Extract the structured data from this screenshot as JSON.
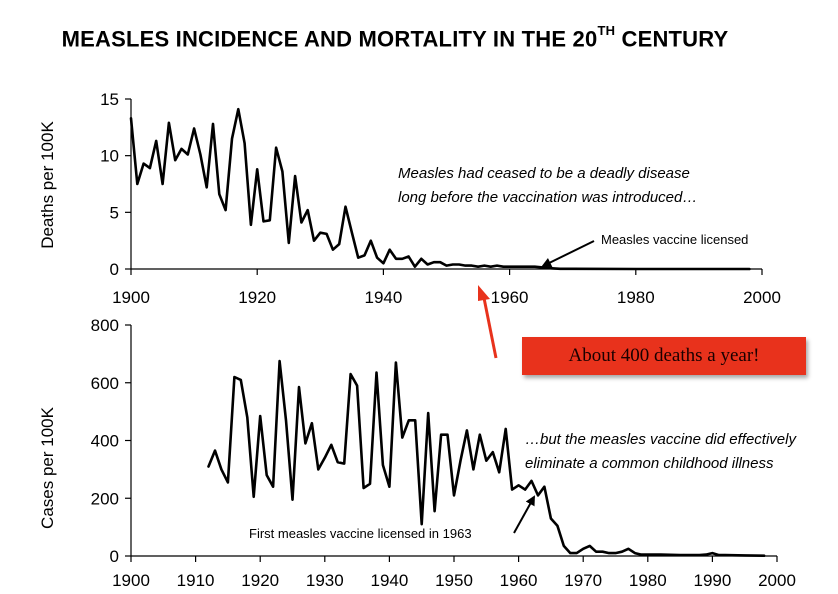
{
  "title": {
    "main": "MEASLES INCIDENCE AND MORTALITY IN THE 20",
    "sup": "TH",
    "end": " CENTURY"
  },
  "callout": {
    "text": "About 400 deaths a year!",
    "color": "#e8321c"
  },
  "chart_data": [
    {
      "type": "line",
      "xlabel": "",
      "ylabel": "Deaths per 100K",
      "xlim": [
        1900,
        2000
      ],
      "ylim": [
        0,
        15
      ],
      "xticks": [
        1900,
        1920,
        1940,
        1960,
        1980,
        2000
      ],
      "yticks": [
        0,
        5,
        10,
        15
      ],
      "grid": false,
      "annotations": [
        "Measles had ceased to be a deadly disease",
        "long before the vaccination was introduced…",
        "Measles vaccine licensed"
      ],
      "series": [
        {
          "x": [
            1900,
            1901,
            1902,
            1903,
            1904,
            1905,
            1906,
            1907,
            1908,
            1909,
            1910,
            1911,
            1912,
            1913,
            1914,
            1915,
            1916,
            1917,
            1918,
            1919,
            1920,
            1921,
            1922,
            1923,
            1924,
            1925,
            1926,
            1927,
            1928,
            1929,
            1930,
            1931,
            1932,
            1933,
            1934,
            1935,
            1936,
            1937,
            1938,
            1939,
            1940,
            1941,
            1942,
            1943,
            1944,
            1945,
            1946,
            1947,
            1948,
            1949,
            1950,
            1951,
            1952,
            1953,
            1954,
            1955,
            1956,
            1957,
            1958,
            1959,
            1960,
            1961,
            1962,
            1963,
            1964,
            1965,
            1966,
            1967,
            1968,
            1970,
            1980,
            1990,
            1998
          ],
          "values": [
            13.3,
            7.5,
            9.3,
            8.9,
            11.3,
            7.5,
            12.9,
            9.6,
            10.6,
            10.1,
            12.4,
            10.1,
            7.2,
            12.8,
            6.6,
            5.2,
            11.5,
            14.1,
            11.1,
            3.9,
            8.8,
            4.2,
            4.3,
            10.7,
            8.6,
            2.3,
            8.2,
            4.1,
            5.2,
            2.5,
            3.2,
            3.1,
            1.7,
            2.2,
            5.5,
            3.2,
            1.0,
            1.2,
            2.5,
            1.0,
            0.5,
            1.7,
            0.9,
            0.9,
            1.1,
            0.2,
            0.9,
            0.4,
            0.6,
            0.6,
            0.3,
            0.4,
            0.4,
            0.3,
            0.3,
            0.2,
            0.3,
            0.2,
            0.3,
            0.2,
            0.2,
            0.2,
            0.2,
            0.2,
            0.2,
            0.15,
            0.1,
            0.05,
            0.02,
            0.02,
            0.0,
            0.0,
            0.0
          ],
          "color": "#000000"
        }
      ]
    },
    {
      "type": "line",
      "xlabel": "",
      "ylabel": "Cases  per 100K",
      "xlim": [
        1900,
        2000
      ],
      "ylim": [
        0,
        800
      ],
      "xticks": [
        1900,
        1910,
        1920,
        1930,
        1940,
        1950,
        1960,
        1970,
        1980,
        1990,
        2000
      ],
      "yticks": [
        0,
        200,
        400,
        600,
        800
      ],
      "grid": false,
      "annotations": [
        "…but the measles vaccine did effectively",
        "eliminate a common childhood illness",
        "First measles vaccine  licensed in 1963"
      ],
      "series": [
        {
          "x": [
            1912,
            1913,
            1914,
            1915,
            1916,
            1917,
            1918,
            1919,
            1920,
            1921,
            1922,
            1923,
            1924,
            1925,
            1926,
            1927,
            1928,
            1929,
            1930,
            1931,
            1932,
            1933,
            1934,
            1935,
            1936,
            1937,
            1938,
            1939,
            1940,
            1941,
            1942,
            1943,
            1944,
            1945,
            1946,
            1947,
            1948,
            1949,
            1950,
            1951,
            1952,
            1953,
            1954,
            1955,
            1956,
            1957,
            1958,
            1959,
            1960,
            1961,
            1962,
            1963,
            1964,
            1965,
            1966,
            1967,
            1968,
            1969,
            1970,
            1971,
            1972,
            1973,
            1974,
            1975,
            1976,
            1977,
            1978,
            1979,
            1980,
            1982,
            1985,
            1988,
            1989,
            1990,
            1991,
            1992,
            1995,
            1998
          ],
          "values": [
            310,
            365,
            300,
            255,
            620,
            610,
            480,
            205,
            485,
            280,
            240,
            675,
            470,
            195,
            585,
            390,
            460,
            300,
            340,
            385,
            325,
            320,
            630,
            590,
            235,
            250,
            635,
            315,
            240,
            670,
            410,
            470,
            470,
            110,
            495,
            155,
            420,
            420,
            210,
            330,
            435,
            300,
            420,
            330,
            360,
            290,
            440,
            230,
            245,
            230,
            260,
            210,
            240,
            130,
            105,
            35,
            10,
            10,
            25,
            35,
            15,
            15,
            10,
            10,
            15,
            25,
            10,
            5,
            5,
            5,
            3,
            3,
            5,
            10,
            3,
            3,
            2,
            1
          ],
          "color": "#000000"
        }
      ]
    }
  ]
}
